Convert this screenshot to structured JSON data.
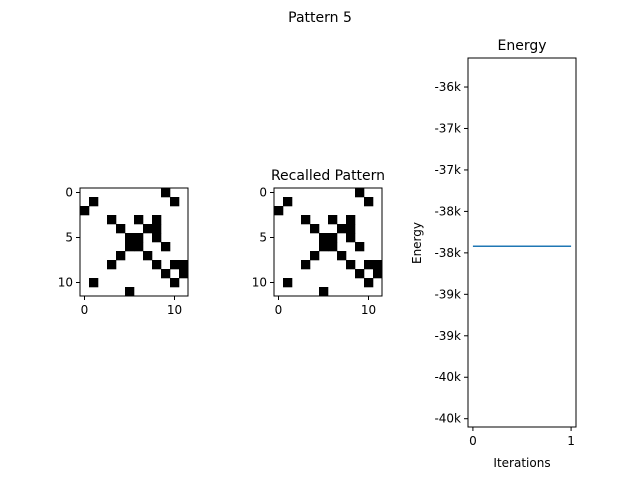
{
  "figure": {
    "suptitle": "Pattern 5"
  },
  "chart_data": [
    {
      "type": "heatmap",
      "title": "",
      "rows": 12,
      "cols": 12,
      "cmap": "binary",
      "xticks": [
        "0",
        "10"
      ],
      "yticks": [
        "0",
        "5",
        "10"
      ],
      "cells": [
        [
          0,
          0,
          0,
          0,
          0,
          0,
          0,
          0,
          0,
          1,
          0,
          0
        ],
        [
          0,
          1,
          0,
          0,
          0,
          0,
          0,
          0,
          0,
          0,
          1,
          0
        ],
        [
          1,
          0,
          0,
          0,
          0,
          0,
          0,
          0,
          0,
          0,
          0,
          0
        ],
        [
          0,
          0,
          0,
          1,
          0,
          0,
          1,
          0,
          1,
          0,
          0,
          0
        ],
        [
          0,
          0,
          0,
          0,
          1,
          0,
          0,
          1,
          1,
          0,
          0,
          0
        ],
        [
          0,
          0,
          0,
          0,
          0,
          1,
          1,
          0,
          1,
          0,
          0,
          0
        ],
        [
          0,
          0,
          0,
          0,
          0,
          1,
          1,
          0,
          0,
          1,
          0,
          0
        ],
        [
          0,
          0,
          0,
          0,
          1,
          0,
          0,
          1,
          0,
          0,
          0,
          0
        ],
        [
          0,
          0,
          0,
          1,
          0,
          0,
          0,
          0,
          1,
          0,
          1,
          1
        ],
        [
          0,
          0,
          0,
          0,
          0,
          0,
          0,
          0,
          0,
          1,
          0,
          1
        ],
        [
          0,
          1,
          0,
          0,
          0,
          0,
          0,
          0,
          0,
          0,
          1,
          0
        ],
        [
          0,
          0,
          0,
          0,
          0,
          1,
          0,
          0,
          0,
          0,
          0,
          0
        ]
      ]
    },
    {
      "type": "heatmap",
      "title": "Recalled Pattern",
      "rows": 12,
      "cols": 12,
      "cmap": "binary",
      "xticks": [
        "0",
        "10"
      ],
      "yticks": [
        "0",
        "5",
        "10"
      ],
      "cells": [
        [
          0,
          0,
          0,
          0,
          0,
          0,
          0,
          0,
          0,
          1,
          0,
          0
        ],
        [
          0,
          1,
          0,
          0,
          0,
          0,
          0,
          0,
          0,
          0,
          1,
          0
        ],
        [
          1,
          0,
          0,
          0,
          0,
          0,
          0,
          0,
          0,
          0,
          0,
          0
        ],
        [
          0,
          0,
          0,
          1,
          0,
          0,
          1,
          0,
          1,
          0,
          0,
          0
        ],
        [
          0,
          0,
          0,
          0,
          1,
          0,
          0,
          1,
          1,
          0,
          0,
          0
        ],
        [
          0,
          0,
          0,
          0,
          0,
          1,
          1,
          0,
          1,
          0,
          0,
          0
        ],
        [
          0,
          0,
          0,
          0,
          0,
          1,
          1,
          0,
          0,
          1,
          0,
          0
        ],
        [
          0,
          0,
          0,
          0,
          1,
          0,
          0,
          1,
          0,
          0,
          0,
          0
        ],
        [
          0,
          0,
          0,
          1,
          0,
          0,
          0,
          0,
          1,
          0,
          1,
          1
        ],
        [
          0,
          0,
          0,
          0,
          0,
          0,
          0,
          0,
          0,
          1,
          0,
          1
        ],
        [
          0,
          1,
          0,
          0,
          0,
          0,
          0,
          0,
          0,
          0,
          1,
          0
        ],
        [
          0,
          0,
          0,
          0,
          0,
          1,
          0,
          0,
          0,
          0,
          0,
          0
        ]
      ]
    },
    {
      "type": "line",
      "title": "Energy",
      "xlabel": "Iterations",
      "ylabel": "Energy",
      "x": [
        0,
        1
      ],
      "xlim": [
        -0.05,
        1.05
      ],
      "xticks": [
        0,
        1
      ],
      "ylim": [
        -40100,
        -35650
      ],
      "yticks": [
        {
          "value": -36000,
          "label": "-36k"
        },
        {
          "value": -36500,
          "label": "-37k"
        },
        {
          "value": -37000,
          "label": "-37k"
        },
        {
          "value": -37500,
          "label": "-38k"
        },
        {
          "value": -38000,
          "label": "-38k"
        },
        {
          "value": -38500,
          "label": "-39k"
        },
        {
          "value": -39000,
          "label": "-39k"
        },
        {
          "value": -39500,
          "label": "-40k"
        },
        {
          "value": -40000,
          "label": "-40k"
        }
      ],
      "series": [
        {
          "values": [
            -37920,
            -37920
          ],
          "color": "#1f77b4"
        }
      ],
      "grid": false
    }
  ]
}
